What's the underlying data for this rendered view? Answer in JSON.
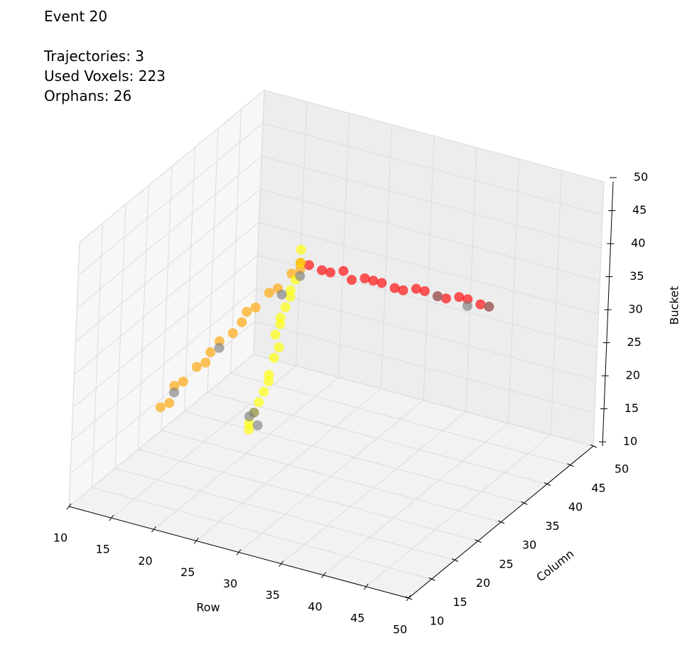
{
  "chart_data": {
    "type": "scatter3d",
    "title": "Event 20",
    "annotations": [
      "Trajectories: 3",
      "Used Voxels: 223",
      "Orphans: 26"
    ],
    "xlabel": "Row",
    "ylabel": "Column",
    "zlabel": "Bucket",
    "xlim": [
      10,
      50
    ],
    "ylim": [
      10,
      50
    ],
    "zlim": [
      10,
      50
    ],
    "xticks": [
      10,
      15,
      20,
      25,
      30,
      35,
      40,
      45,
      50
    ],
    "yticks": [
      10,
      15,
      20,
      25,
      30,
      35,
      40,
      45,
      50
    ],
    "zticks": [
      10,
      15,
      20,
      25,
      30,
      35,
      40,
      45,
      50
    ],
    "grid": true,
    "series": [
      {
        "color": "#ff0000",
        "x": [
          27,
          28,
          29,
          30,
          31,
          32,
          33,
          34,
          35,
          36,
          37,
          38,
          39,
          40,
          41,
          42,
          43,
          44,
          45
        ],
        "y": [
          27,
          27,
          28,
          28,
          29,
          29,
          30,
          30,
          30,
          31,
          31,
          32,
          32,
          33,
          33,
          34,
          34,
          35,
          35
        ],
        "z": [
          43,
          43,
          42,
          42,
          42,
          41,
          41,
          41,
          41,
          40,
          40,
          40,
          40,
          39,
          39,
          39,
          39,
          38,
          38
        ]
      },
      {
        "color": "#ffa500",
        "x": [
          15,
          16,
          16,
          17,
          18,
          19,
          19,
          20,
          21,
          22,
          22,
          23,
          24,
          25,
          26,
          27
        ],
        "y": [
          20,
          20,
          21,
          21,
          22,
          22,
          23,
          23,
          24,
          24,
          25,
          25,
          26,
          26,
          27,
          27
        ],
        "z": [
          21,
          22,
          24,
          25,
          27,
          28,
          29,
          31,
          32,
          34,
          35,
          36,
          38,
          39,
          41,
          42
        ]
      },
      {
        "color": "#ffff00",
        "x": [
          28,
          28,
          28,
          28,
          28,
          28,
          28,
          28,
          28,
          27,
          27,
          27,
          27,
          27,
          27,
          27,
          27,
          27
        ],
        "y": [
          15,
          15,
          16,
          17,
          18,
          19,
          19,
          20,
          21,
          22,
          23,
          23,
          24,
          25,
          25,
          26,
          27,
          27
        ],
        "z": [
          25,
          26,
          27,
          28,
          29,
          30,
          31,
          33,
          34,
          35,
          36,
          37,
          38,
          39,
          40,
          41,
          43,
          45
        ]
      },
      {
        "color": "#808080",
        "x": [
          16,
          28,
          28,
          29,
          27,
          26,
          40,
          45,
          43,
          20
        ],
        "y": [
          21,
          15,
          16,
          15,
          27,
          25,
          33,
          35,
          34,
          23
        ],
        "z": [
          23,
          27,
          27,
          26,
          41,
          39,
          39,
          38,
          38,
          30
        ]
      }
    ]
  }
}
